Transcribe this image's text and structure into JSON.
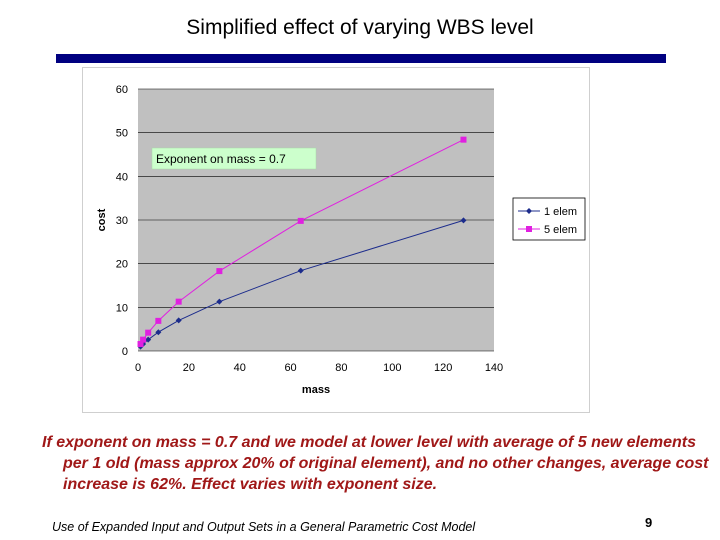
{
  "slide": {
    "title": "Simplified effect of varying WBS level",
    "body": "If exponent on mass = 0.7 and we model at lower level with average of 5 new elements per 1 old (mass approx 20% of original element), and no other changes, average cost increase is 62%. Effect varies with exponent size.",
    "footer": "Use of Expanded Input and Output Sets in a General Parametric Cost Model",
    "page_number": "9",
    "accent_color": "#000080",
    "body_color": "#a01818"
  },
  "chart_data": {
    "type": "line",
    "title": "",
    "xlabel": "mass",
    "ylabel": "cost",
    "xlim": [
      0,
      140
    ],
    "ylim": [
      0,
      60
    ],
    "xticks": [
      0,
      20,
      40,
      60,
      80,
      100,
      120,
      140
    ],
    "yticks": [
      0,
      10,
      20,
      30,
      40,
      50,
      60
    ],
    "grid": true,
    "legend_position": "right",
    "annotation": "Exponent on mass = 0.7",
    "series": [
      {
        "name": "1 elem",
        "color": "#1c2c8c",
        "marker": "diamond",
        "x": [
          1,
          2,
          4,
          8,
          16,
          32,
          64,
          128
        ],
        "y": [
          1.0,
          1.6,
          2.6,
          4.3,
          7.0,
          11.3,
          18.4,
          29.9
        ]
      },
      {
        "name": "5 elem",
        "color": "#e020e0",
        "marker": "square",
        "x": [
          1,
          2,
          4,
          8,
          16,
          32,
          64,
          128
        ],
        "y": [
          1.6,
          2.6,
          4.2,
          6.9,
          11.3,
          18.3,
          29.8,
          48.4
        ]
      }
    ]
  }
}
